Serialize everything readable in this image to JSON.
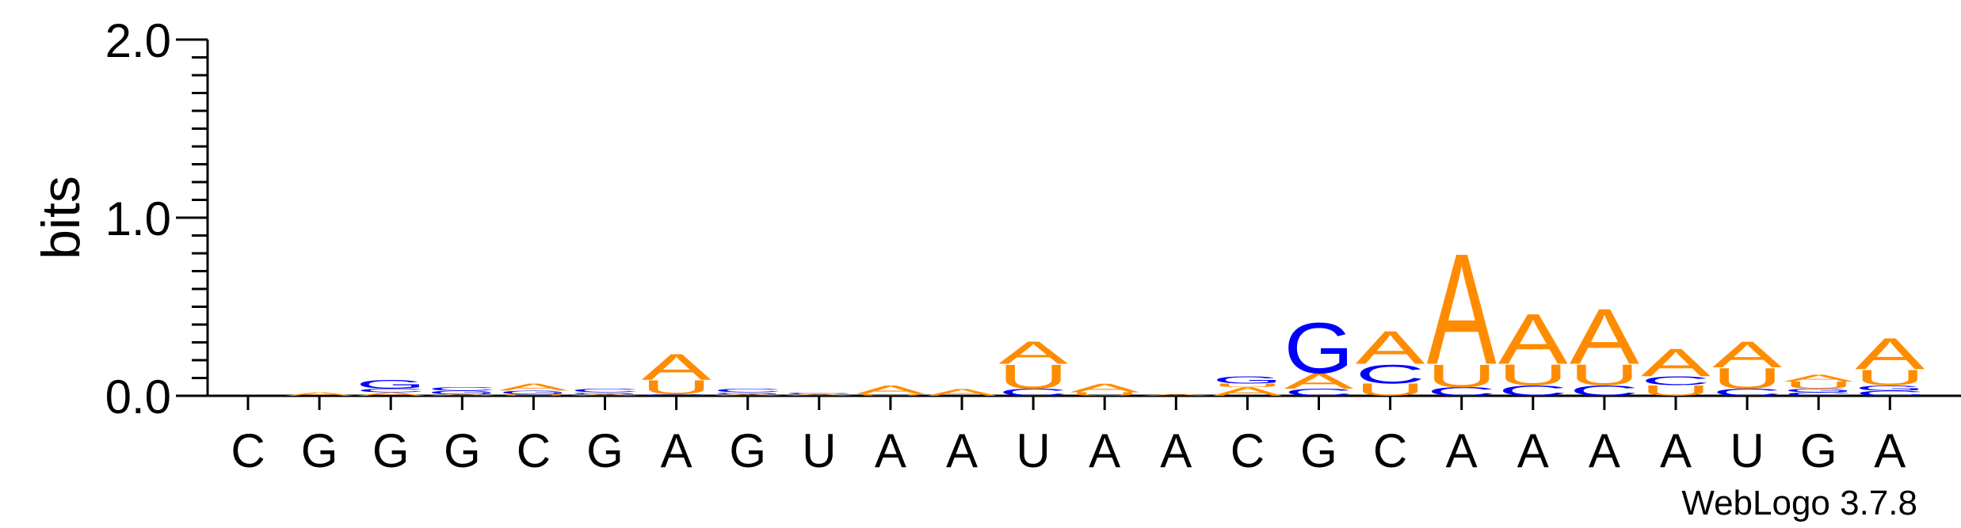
{
  "chart_data": {
    "type": "sequence-logo",
    "ylabel": "bits",
    "ylim": [
      0,
      2.0
    ],
    "yticks": [
      "0.0",
      "1.0",
      "2.0"
    ],
    "credit": "WebLogo 3.7.8",
    "colors": {
      "A": "#ff8c00",
      "U": "#ff8c00",
      "G": "#0000ff",
      "C": "#0000ff"
    },
    "positions": [
      {
        "label": "C",
        "stack": []
      },
      {
        "label": "G",
        "stack": [
          {
            "l": "A",
            "h": 0.02
          }
        ]
      },
      {
        "label": "G",
        "stack": [
          {
            "l": "A",
            "h": 0.02
          },
          {
            "l": "C",
            "h": 0.02
          },
          {
            "l": "G",
            "h": 0.05
          }
        ]
      },
      {
        "label": "G",
        "stack": [
          {
            "l": "A",
            "h": 0.01
          },
          {
            "l": "G",
            "h": 0.02
          },
          {
            "l": "C",
            "h": 0.02
          }
        ]
      },
      {
        "label": "C",
        "stack": [
          {
            "l": "U",
            "h": 0.01
          },
          {
            "l": "G",
            "h": 0.02
          },
          {
            "l": "A",
            "h": 0.04
          }
        ]
      },
      {
        "label": "G",
        "stack": [
          {
            "l": "A",
            "h": 0.01
          },
          {
            "l": "G",
            "h": 0.01
          },
          {
            "l": "C",
            "h": 0.02
          }
        ]
      },
      {
        "label": "A",
        "stack": [
          {
            "l": "G",
            "h": 0.01
          },
          {
            "l": "U",
            "h": 0.08
          },
          {
            "l": "A",
            "h": 0.15
          }
        ]
      },
      {
        "label": "G",
        "stack": [
          {
            "l": "A",
            "h": 0.01
          },
          {
            "l": "G",
            "h": 0.01
          },
          {
            "l": "C",
            "h": 0.02
          }
        ]
      },
      {
        "label": "U",
        "stack": [
          {
            "l": "A",
            "h": 0.01
          },
          {
            "l": "C",
            "h": 0.01
          }
        ]
      },
      {
        "label": "A",
        "stack": [
          {
            "l": "U",
            "h": 0.01
          },
          {
            "l": "A",
            "h": 0.05
          }
        ]
      },
      {
        "label": "A",
        "stack": [
          {
            "l": "A",
            "h": 0.04
          }
        ]
      },
      {
        "label": "U",
        "stack": [
          {
            "l": "C",
            "h": 0.04
          },
          {
            "l": "U",
            "h": 0.14
          },
          {
            "l": "A",
            "h": 0.13
          }
        ]
      },
      {
        "label": "A",
        "stack": [
          {
            "l": "U",
            "h": 0.02
          },
          {
            "l": "A",
            "h": 0.05
          }
        ]
      },
      {
        "label": "A",
        "stack": [
          {
            "l": "A",
            "h": 0.01
          }
        ]
      },
      {
        "label": "C",
        "stack": [
          {
            "l": "A",
            "h": 0.05
          },
          {
            "l": "U",
            "h": 0.02
          },
          {
            "l": "G",
            "h": 0.04
          }
        ]
      },
      {
        "label": "G",
        "stack": [
          {
            "l": "C",
            "h": 0.04
          },
          {
            "l": "A",
            "h": 0.09
          },
          {
            "l": "G",
            "h": 0.29
          }
        ]
      },
      {
        "label": "C",
        "stack": [
          {
            "l": "U",
            "h": 0.07
          },
          {
            "l": "C",
            "h": 0.11
          },
          {
            "l": "A",
            "h": 0.19
          }
        ]
      },
      {
        "label": "A",
        "stack": [
          {
            "l": "C",
            "h": 0.05
          },
          {
            "l": "U",
            "h": 0.13
          },
          {
            "l": "A",
            "h": 0.64
          }
        ]
      },
      {
        "label": "A",
        "stack": [
          {
            "l": "C",
            "h": 0.06
          },
          {
            "l": "U",
            "h": 0.12
          },
          {
            "l": "A",
            "h": 0.29
          }
        ]
      },
      {
        "label": "A",
        "stack": [
          {
            "l": "C",
            "h": 0.06
          },
          {
            "l": "U",
            "h": 0.12
          },
          {
            "l": "A",
            "h": 0.32
          }
        ]
      },
      {
        "label": "A",
        "stack": [
          {
            "l": "U",
            "h": 0.06
          },
          {
            "l": "C",
            "h": 0.05
          },
          {
            "l": "A",
            "h": 0.16
          }
        ]
      },
      {
        "label": "U",
        "stack": [
          {
            "l": "C",
            "h": 0.04
          },
          {
            "l": "U",
            "h": 0.12
          },
          {
            "l": "A",
            "h": 0.15
          }
        ]
      },
      {
        "label": "G",
        "stack": [
          {
            "l": "C",
            "h": 0.02
          },
          {
            "l": "G",
            "h": 0.02
          },
          {
            "l": "U",
            "h": 0.04
          },
          {
            "l": "A",
            "h": 0.04
          }
        ]
      },
      {
        "label": "A",
        "stack": [
          {
            "l": "C",
            "h": 0.03
          },
          {
            "l": "G",
            "h": 0.03
          },
          {
            "l": "U",
            "h": 0.09
          },
          {
            "l": "A",
            "h": 0.18
          }
        ]
      }
    ]
  }
}
